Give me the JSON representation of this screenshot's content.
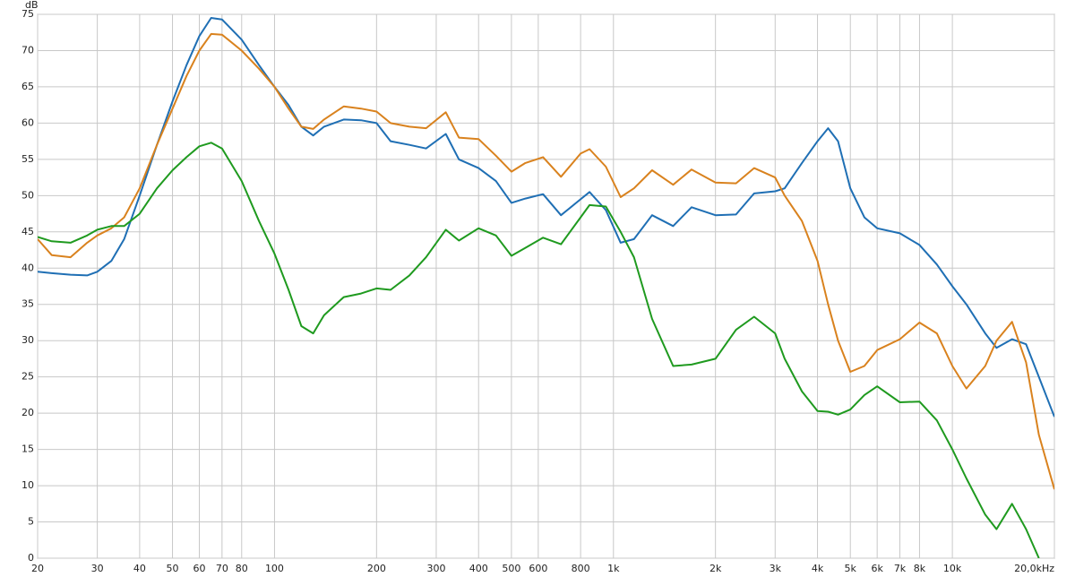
{
  "chart_data": {
    "type": "line",
    "y_label": "dB",
    "xscale": "log",
    "grid": true,
    "xlim": [
      20,
      20000
    ],
    "ylim": [
      0,
      75
    ],
    "yticks": [
      0,
      5,
      10,
      15,
      20,
      25,
      30,
      35,
      40,
      45,
      50,
      55,
      60,
      65,
      70,
      75
    ],
    "xticks": [
      20,
      30,
      40,
      50,
      60,
      70,
      80,
      100,
      200,
      300,
      400,
      500,
      600,
      800,
      {
        "value": 1000,
        "label": "1k"
      },
      {
        "value": 2000,
        "label": "2k"
      },
      {
        "value": 3000,
        "label": "3k"
      },
      {
        "value": 4000,
        "label": "4k"
      },
      {
        "value": 5000,
        "label": "5k"
      },
      {
        "value": 6000,
        "label": "6k"
      },
      {
        "value": 7000,
        "label": "7k"
      },
      {
        "value": 8000,
        "label": "8k"
      },
      {
        "value": 10000,
        "label": "10k"
      },
      {
        "value": 20000,
        "label": "20,0kHz"
      }
    ],
    "x": [
      20,
      22,
      25,
      28,
      30,
      33,
      36,
      40,
      45,
      50,
      55,
      60,
      65,
      70,
      80,
      90,
      100,
      110,
      120,
      130,
      140,
      160,
      180,
      200,
      220,
      250,
      280,
      320,
      350,
      400,
      450,
      500,
      550,
      620,
      700,
      800,
      850,
      950,
      1050,
      1150,
      1300,
      1500,
      1700,
      2000,
      2300,
      2600,
      3000,
      3200,
      3600,
      4000,
      4300,
      4600,
      5000,
      5500,
      6000,
      7000,
      8000,
      9000,
      10000,
      11000,
      12500,
      13500,
      15000,
      16500,
      18000,
      20000
    ],
    "series": [
      {
        "color": "#1f6fb4",
        "values": [
          39.5,
          39.3,
          39.1,
          39,
          39.5,
          41,
          44,
          50,
          57,
          63,
          68,
          72,
          74.5,
          74.3,
          71.5,
          68,
          65,
          62.5,
          59.5,
          58.3,
          59.5,
          60.5,
          60.4,
          60,
          57.5,
          57,
          56.5,
          58.5,
          55,
          53.8,
          52,
          49,
          49.6,
          50.2,
          47.3,
          49.5,
          50.5,
          48,
          43.5,
          44,
          47.3,
          45.8,
          48.4,
          47.3,
          47.4,
          50.3,
          50.6,
          51,
          54.5,
          57.5,
          59.3,
          57.5,
          51,
          47,
          45.5,
          44.8,
          43.2,
          40.5,
          37.5,
          35,
          31,
          29,
          30.2,
          29.5,
          25,
          19.5
        ]
      },
      {
        "color": "#d9821e",
        "values": [
          44,
          41.8,
          41.5,
          43.5,
          44.5,
          45.5,
          47,
          51,
          57,
          62,
          66.5,
          70,
          72.3,
          72.2,
          70,
          67.5,
          65,
          62,
          59.5,
          59.2,
          60.5,
          62.3,
          62,
          61.6,
          60,
          59.5,
          59.3,
          61.5,
          58,
          57.8,
          55.5,
          53.3,
          54.5,
          55.3,
          52.6,
          55.8,
          56.4,
          54,
          49.8,
          51,
          53.5,
          51.5,
          53.6,
          51.8,
          51.7,
          53.8,
          52.5,
          50,
          46.5,
          41,
          35,
          30,
          25.7,
          26.5,
          28.7,
          30.2,
          32.5,
          31,
          26.5,
          23.4,
          26.5,
          30,
          32.6,
          27,
          17,
          9.5
        ]
      },
      {
        "color": "#1f9a1f",
        "values": [
          44.3,
          43.7,
          43.5,
          44.5,
          45.3,
          45.8,
          45.8,
          47.5,
          51,
          53.5,
          55.3,
          56.8,
          57.3,
          56.5,
          52,
          46.5,
          42,
          37,
          32,
          31,
          33.5,
          36,
          36.5,
          37.2,
          37,
          39,
          41.5,
          45.3,
          43.8,
          45.5,
          44.5,
          41.7,
          42.8,
          44.2,
          43.3,
          47,
          48.7,
          48.5,
          45,
          41.5,
          33,
          26.5,
          26.7,
          27.5,
          31.5,
          33.3,
          31,
          27.5,
          23,
          20.3,
          20.2,
          19.8,
          20.5,
          22.5,
          23.7,
          21.5,
          21.6,
          19,
          15,
          11,
          6,
          4,
          7.5,
          4,
          0,
          null
        ]
      }
    ]
  }
}
